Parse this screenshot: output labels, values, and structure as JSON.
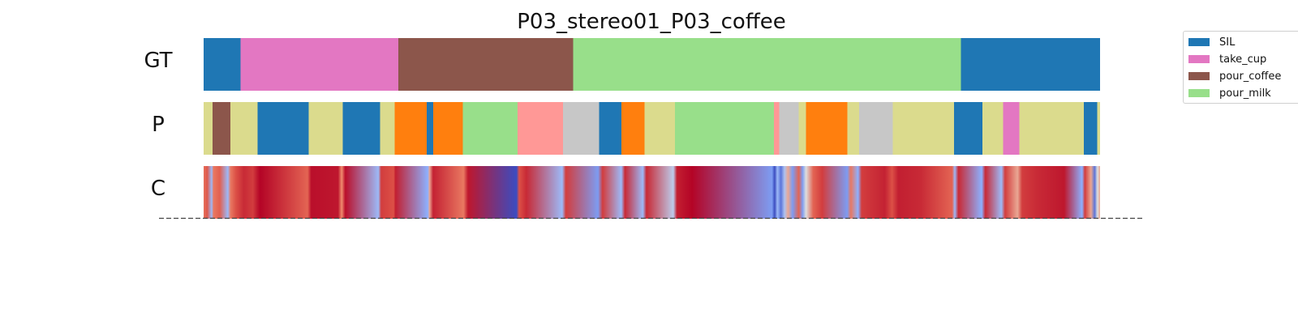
{
  "chart_data": {
    "type": "segmentation",
    "title": "P03_stereo01_P03_coffee",
    "x_range": [
      0,
      1
    ],
    "rows": [
      {
        "label": "GT",
        "segments": [
          {
            "start": 0.0,
            "end": 0.041,
            "class": "SIL"
          },
          {
            "start": 0.041,
            "end": 0.217,
            "class": "take_cup"
          },
          {
            "start": 0.217,
            "end": 0.412,
            "class": "pour_coffee"
          },
          {
            "start": 0.412,
            "end": 0.845,
            "class": "pour_milk"
          },
          {
            "start": 0.845,
            "end": 1.0,
            "class": "SIL"
          }
        ]
      },
      {
        "label": "P",
        "segments": [
          {
            "start": 0.0,
            "end": 0.01,
            "color": "#dbdb8d"
          },
          {
            "start": 0.01,
            "end": 0.03,
            "color": "#8c564b"
          },
          {
            "start": 0.03,
            "end": 0.06,
            "color": "#dbdb8d"
          },
          {
            "start": 0.06,
            "end": 0.117,
            "color": "#1f77b4"
          },
          {
            "start": 0.117,
            "end": 0.155,
            "color": "#dbdb8d"
          },
          {
            "start": 0.155,
            "end": 0.197,
            "color": "#1f77b4"
          },
          {
            "start": 0.197,
            "end": 0.213,
            "color": "#dbdb8d"
          },
          {
            "start": 0.213,
            "end": 0.249,
            "color": "#ff7f0e"
          },
          {
            "start": 0.249,
            "end": 0.256,
            "color": "#1f77b4"
          },
          {
            "start": 0.256,
            "end": 0.289,
            "color": "#ff7f0e"
          },
          {
            "start": 0.289,
            "end": 0.35,
            "color": "#98df8a"
          },
          {
            "start": 0.35,
            "end": 0.401,
            "color": "#ff9896"
          },
          {
            "start": 0.401,
            "end": 0.441,
            "color": "#c7c7c7"
          },
          {
            "start": 0.441,
            "end": 0.466,
            "color": "#1f77b4"
          },
          {
            "start": 0.466,
            "end": 0.492,
            "color": "#ff7f0e"
          },
          {
            "start": 0.492,
            "end": 0.526,
            "color": "#dbdb8d"
          },
          {
            "start": 0.526,
            "end": 0.636,
            "color": "#98df8a"
          },
          {
            "start": 0.636,
            "end": 0.642,
            "color": "#ff9896"
          },
          {
            "start": 0.642,
            "end": 0.664,
            "color": "#c7c7c7"
          },
          {
            "start": 0.664,
            "end": 0.672,
            "color": "#dbdb8d"
          },
          {
            "start": 0.672,
            "end": 0.718,
            "color": "#ff7f0e"
          },
          {
            "start": 0.718,
            "end": 0.731,
            "color": "#dbdb8d"
          },
          {
            "start": 0.731,
            "end": 0.769,
            "color": "#c7c7c7"
          },
          {
            "start": 0.769,
            "end": 0.837,
            "color": "#dbdb8d"
          },
          {
            "start": 0.837,
            "end": 0.869,
            "color": "#1f77b4"
          },
          {
            "start": 0.869,
            "end": 0.892,
            "color": "#dbdb8d"
          },
          {
            "start": 0.892,
            "end": 0.91,
            "color": "#e377c2"
          },
          {
            "start": 0.91,
            "end": 0.982,
            "color": "#dbdb8d"
          },
          {
            "start": 0.982,
            "end": 0.997,
            "color": "#1f77b4"
          },
          {
            "start": 0.997,
            "end": 1.0,
            "color": "#dbdb8d"
          }
        ]
      },
      {
        "label": "C",
        "colormap": "coolwarm",
        "values": [
          [
            0.0,
            0.72
          ],
          [
            0.004,
            0.78
          ],
          [
            0.009,
            0.3
          ],
          [
            0.011,
            0.7
          ],
          [
            0.018,
            0.76
          ],
          [
            0.027,
            0.3
          ],
          [
            0.03,
            0.7
          ],
          [
            0.036,
            0.8
          ],
          [
            0.045,
            0.9
          ],
          [
            0.055,
            0.85
          ],
          [
            0.06,
            0.95
          ],
          [
            0.063,
            1.0
          ],
          [
            0.116,
            0.75
          ],
          [
            0.12,
            0.97
          ],
          [
            0.15,
            0.95
          ],
          [
            0.154,
            0.65
          ],
          [
            0.158,
            0.97
          ],
          [
            0.195,
            0.3
          ],
          [
            0.198,
            0.85
          ],
          [
            0.212,
            0.8
          ],
          [
            0.214,
            0.93
          ],
          [
            0.25,
            0.25
          ],
          [
            0.252,
            0.6
          ],
          [
            0.256,
            0.92
          ],
          [
            0.29,
            0.7
          ],
          [
            0.295,
            0.95
          ],
          [
            0.349,
            0.0
          ],
          [
            0.352,
            0.8
          ],
          [
            0.36,
            0.9
          ],
          [
            0.4,
            0.3
          ],
          [
            0.404,
            0.85
          ],
          [
            0.44,
            0.2
          ],
          [
            0.445,
            0.85
          ],
          [
            0.466,
            0.3
          ],
          [
            0.47,
            0.9
          ],
          [
            0.49,
            0.3
          ],
          [
            0.494,
            0.9
          ],
          [
            0.524,
            0.4
          ],
          [
            0.528,
            0.93
          ],
          [
            0.545,
            1.0
          ],
          [
            0.634,
            0.2
          ],
          [
            0.637,
            0.0
          ],
          [
            0.64,
            0.3
          ],
          [
            0.644,
            0.1
          ],
          [
            0.648,
            0.35
          ],
          [
            0.652,
            0.6
          ],
          [
            0.657,
            0.2
          ],
          [
            0.664,
            0.75
          ],
          [
            0.668,
            0.2
          ],
          [
            0.672,
            0.5
          ],
          [
            0.68,
            0.75
          ],
          [
            0.69,
            0.85
          ],
          [
            0.718,
            0.2
          ],
          [
            0.722,
            0.7
          ],
          [
            0.73,
            0.25
          ],
          [
            0.734,
            0.85
          ],
          [
            0.76,
            0.92
          ],
          [
            0.768,
            0.8
          ],
          [
            0.775,
            0.93
          ],
          [
            0.8,
            0.9
          ],
          [
            0.835,
            0.75
          ],
          [
            0.838,
            0.3
          ],
          [
            0.842,
            0.9
          ],
          [
            0.868,
            0.25
          ],
          [
            0.872,
            0.9
          ],
          [
            0.89,
            0.3
          ],
          [
            0.894,
            0.85
          ],
          [
            0.908,
            0.6
          ],
          [
            0.913,
            0.85
          ],
          [
            0.93,
            0.9
          ],
          [
            0.96,
            0.95
          ],
          [
            0.98,
            0.25
          ],
          [
            0.983,
            0.85
          ],
          [
            0.99,
            0.6
          ],
          [
            0.994,
            0.1
          ],
          [
            0.997,
            0.5
          ],
          [
            1.0,
            0.6
          ]
        ]
      }
    ],
    "legend": {
      "placement": "upper-right",
      "entries": [
        {
          "name": "SIL",
          "color": "#1f77b4"
        },
        {
          "name": "take_cup",
          "color": "#e377c2"
        },
        {
          "name": "pour_coffee",
          "color": "#8c564b"
        },
        {
          "name": "pour_milk",
          "color": "#98df8a"
        }
      ]
    },
    "baseline": "dashed"
  }
}
